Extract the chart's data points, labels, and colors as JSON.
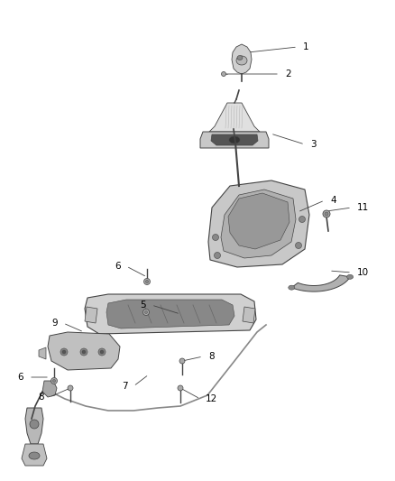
{
  "bg_color": "#ffffff",
  "line_color": "#444444",
  "text_color": "#000000",
  "fig_width": 4.38,
  "fig_height": 5.33,
  "dpi": 100,
  "label_font_size": 7.5,
  "leader_lw": 0.6,
  "comp_lw": 0.7,
  "gray_light": "#d0d0d0",
  "gray_mid": "#aaaaaa",
  "gray_dark": "#888888",
  "gray_darker": "#666666"
}
